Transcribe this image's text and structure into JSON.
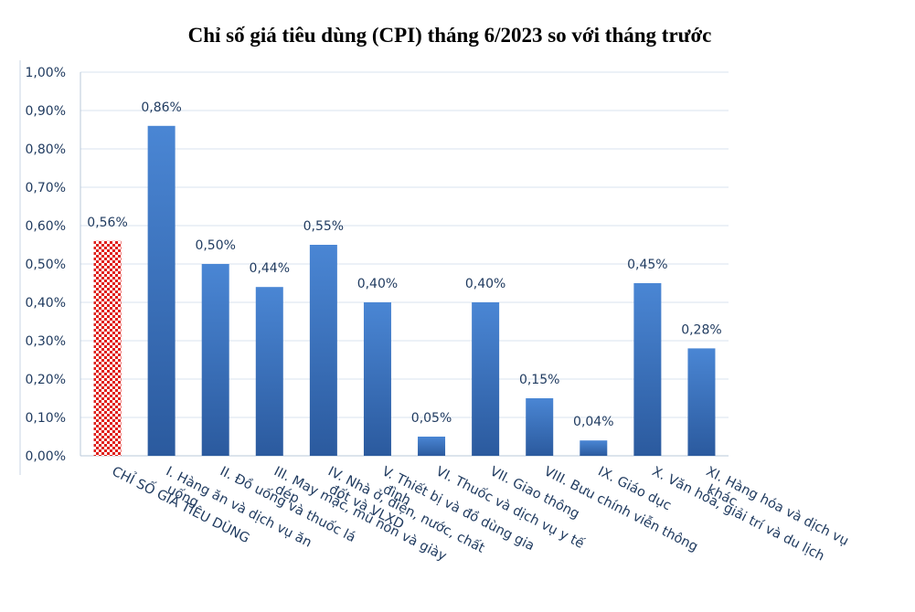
{
  "chart_data": {
    "type": "bar",
    "title": "Chỉ số giá tiêu dùng (CPI) tháng 6/2023 so với tháng trước",
    "xlabel": "",
    "ylabel": "",
    "ylim": [
      0,
      1.0
    ],
    "yticks": [
      "0,00%",
      "0,10%",
      "0,20%",
      "0,30%",
      "0,40%",
      "0,50%",
      "0,60%",
      "0,70%",
      "0,80%",
      "0,90%",
      "1,00%"
    ],
    "grid": true,
    "categories": [
      "CHỈ SỐ GIÁ TIÊU DÙNG",
      "I. Hàng ăn và dịch vụ ăn uống",
      "II. Đồ uống và thuốc lá",
      "III. May mặc, mũ nón và giày dép",
      "IV. Nhà ở, điện, nước, chất đốt và VLXD",
      "V. Thiết bị và đồ dùng gia đình",
      "VI. Thuốc và dịch vụ y tế",
      "VII. Giao thông",
      "VIII. Bưu chính viễn thông",
      "IX. Giáo dục",
      "X. Văn hóa, giải trí và du lịch",
      "XI. Hàng hóa và dịch vụ khác"
    ],
    "values": [
      0.56,
      0.86,
      0.5,
      0.44,
      0.55,
      0.4,
      0.05,
      0.4,
      0.15,
      0.04,
      0.45,
      0.28
    ],
    "data_labels": [
      "0,56%",
      "0,86%",
      "0,50%",
      "0,44%",
      "0,55%",
      "0,40%",
      "0,05%",
      "0,40%",
      "0,15%",
      "0,04%",
      "0,45%",
      "0,28%"
    ],
    "colors": {
      "highlight": "#e0201b",
      "bar_top": "#4a86d4",
      "bar_bottom": "#2b5a9e"
    }
  }
}
